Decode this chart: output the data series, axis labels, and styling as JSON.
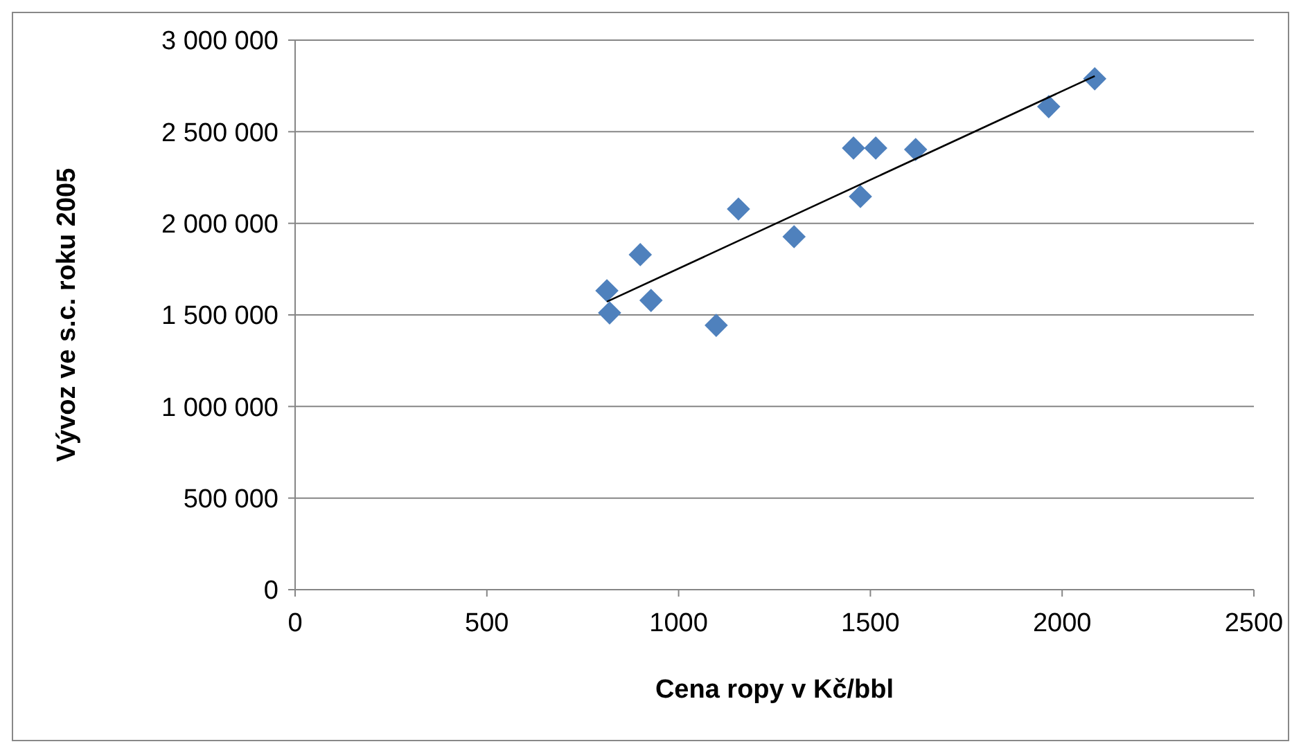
{
  "chart_data": {
    "type": "scatter",
    "xlabel": "Cena ropy v Kč/bbl",
    "ylabel": "Vývoz ve s.c. roku 2005",
    "xlim": [
      0,
      2500
    ],
    "ylim": [
      0,
      3000000
    ],
    "xticks": [
      0,
      500,
      1000,
      1500,
      2000,
      2500
    ],
    "yticks": [
      0,
      {
        "value": 500000,
        "label": "500 000"
      },
      {
        "value": 1000000,
        "label": "1 000 000"
      },
      {
        "value": 1500000,
        "label": "1 500 000"
      },
      {
        "value": 2000000,
        "label": "2 000 000"
      },
      {
        "value": 2500000,
        "label": "2 500 000"
      },
      {
        "value": 3000000,
        "label": "3 000 000"
      }
    ],
    "grid": "y",
    "series": [
      {
        "marker": "diamond",
        "color": "#4f81bd",
        "x": [
          813,
          820,
          900,
          928,
          1098,
          1156,
          1301,
          1456,
          1474,
          1514,
          1618,
          1965,
          2085
        ],
        "values": [
          1632000,
          1511000,
          1829000,
          1579000,
          1443000,
          2078000,
          1927000,
          2411000,
          2146000,
          2411000,
          2403000,
          2637000,
          2789000
        ]
      },
      {
        "type": "line",
        "color": "#000000",
        "x": [
          813,
          2085
        ],
        "values": [
          1572000,
          2804000
        ]
      }
    ]
  }
}
